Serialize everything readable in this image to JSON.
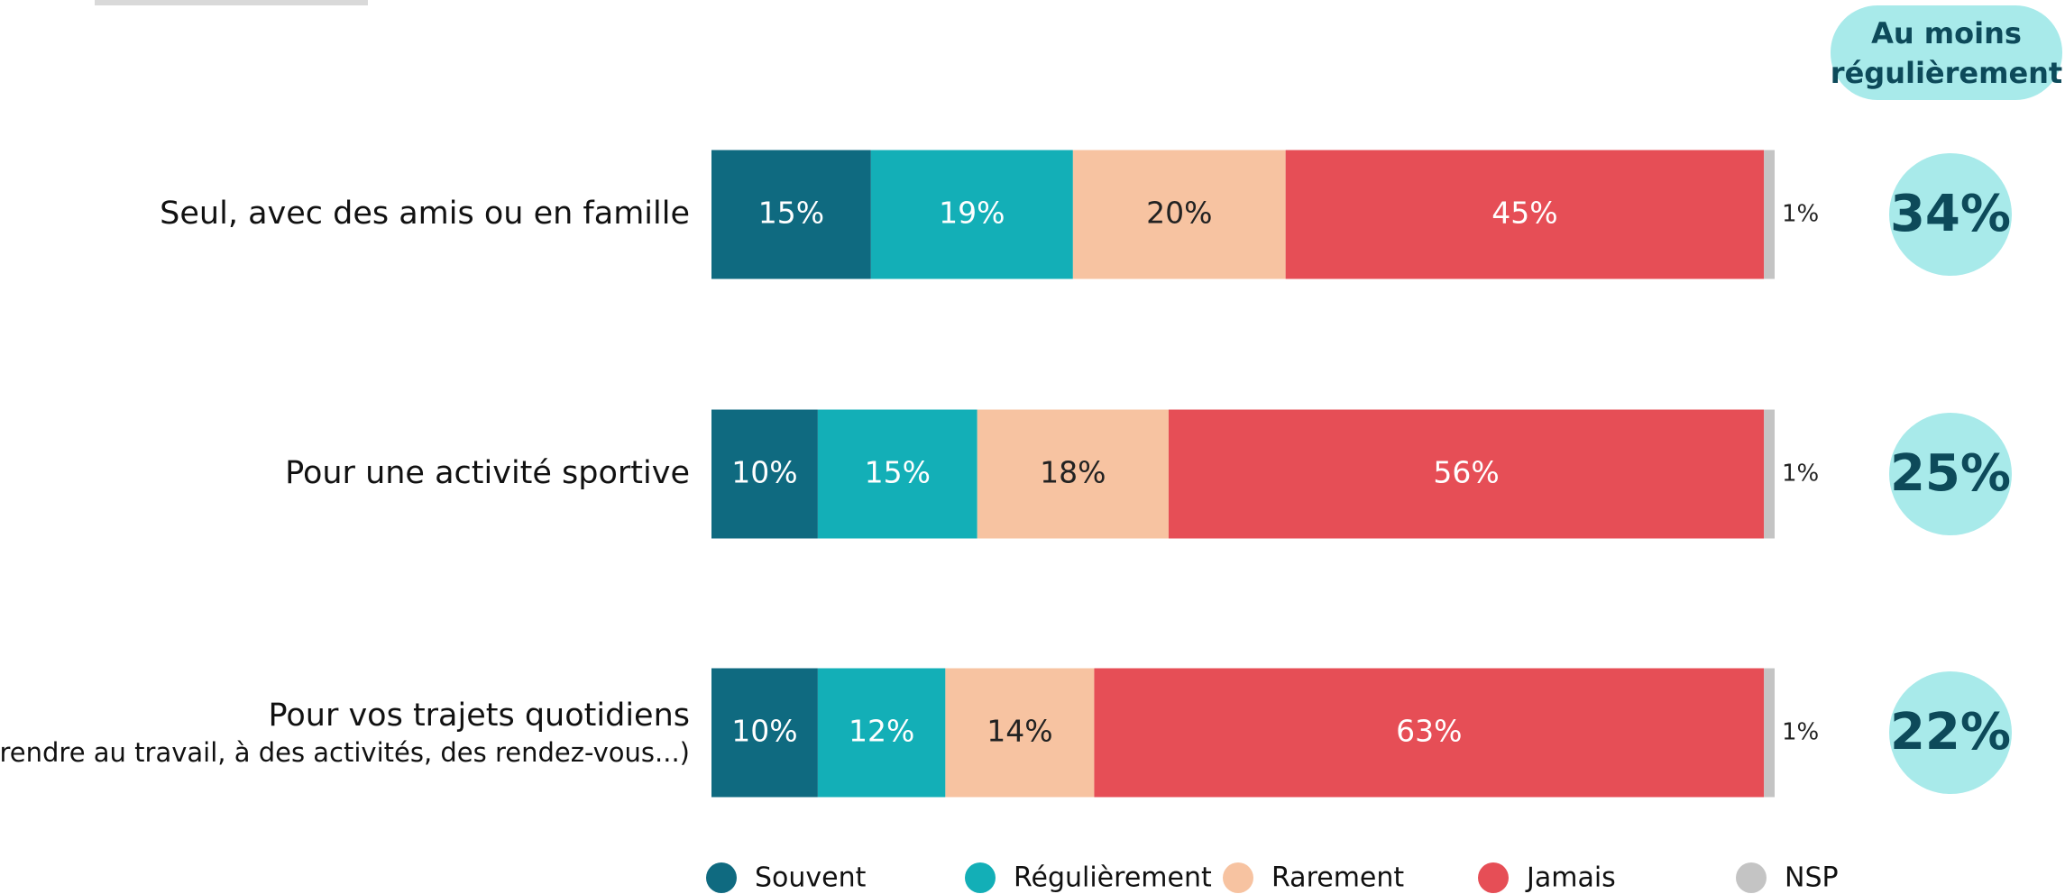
{
  "chart_data": {
    "type": "stacked-bar-horizontal",
    "categories": [
      "Seul, avec des amis ou en famille",
      "Pour une activité sportive",
      "Pour vos trajets quotidiens"
    ],
    "category_notes": [
      null,
      null,
      "(vous rendre au travail, à des activités, des rendez-vous...)"
    ],
    "xlim": [
      0,
      100
    ],
    "series": [
      {
        "name": "Souvent",
        "color": "#0f6a80",
        "label_color": "#ffffff",
        "values": [
          15,
          10,
          10
        ],
        "value_labels": [
          "15%",
          "10%",
          "10%"
        ]
      },
      {
        "name": "Régulièrement",
        "color": "#13afb7",
        "label_color": "#ffffff",
        "values": [
          19,
          15,
          12
        ],
        "value_labels": [
          "19%",
          "15%",
          "12%"
        ]
      },
      {
        "name": "Rarement",
        "color": "#f7c3a1",
        "label_color": "#222222",
        "values": [
          20,
          18,
          14
        ],
        "value_labels": [
          "20%",
          "18%",
          "14%"
        ]
      },
      {
        "name": "Jamais",
        "color": "#e64e56",
        "label_color": "#ffffff",
        "values": [
          45,
          56,
          63
        ],
        "value_labels": [
          "45%",
          "56%",
          "63%"
        ]
      },
      {
        "name": "NSP",
        "color": "#c4c4c4",
        "label_color": "#222222",
        "label_position": "outside",
        "values": [
          1,
          1,
          1
        ],
        "value_labels": [
          "1%",
          "1%",
          "1%"
        ]
      }
    ],
    "summary": {
      "title": "Au moins régulièrement",
      "color": "#a8eaea",
      "values": [
        34,
        25,
        22
      ],
      "value_labels": [
        "34%",
        "25%",
        "22%"
      ]
    }
  }
}
